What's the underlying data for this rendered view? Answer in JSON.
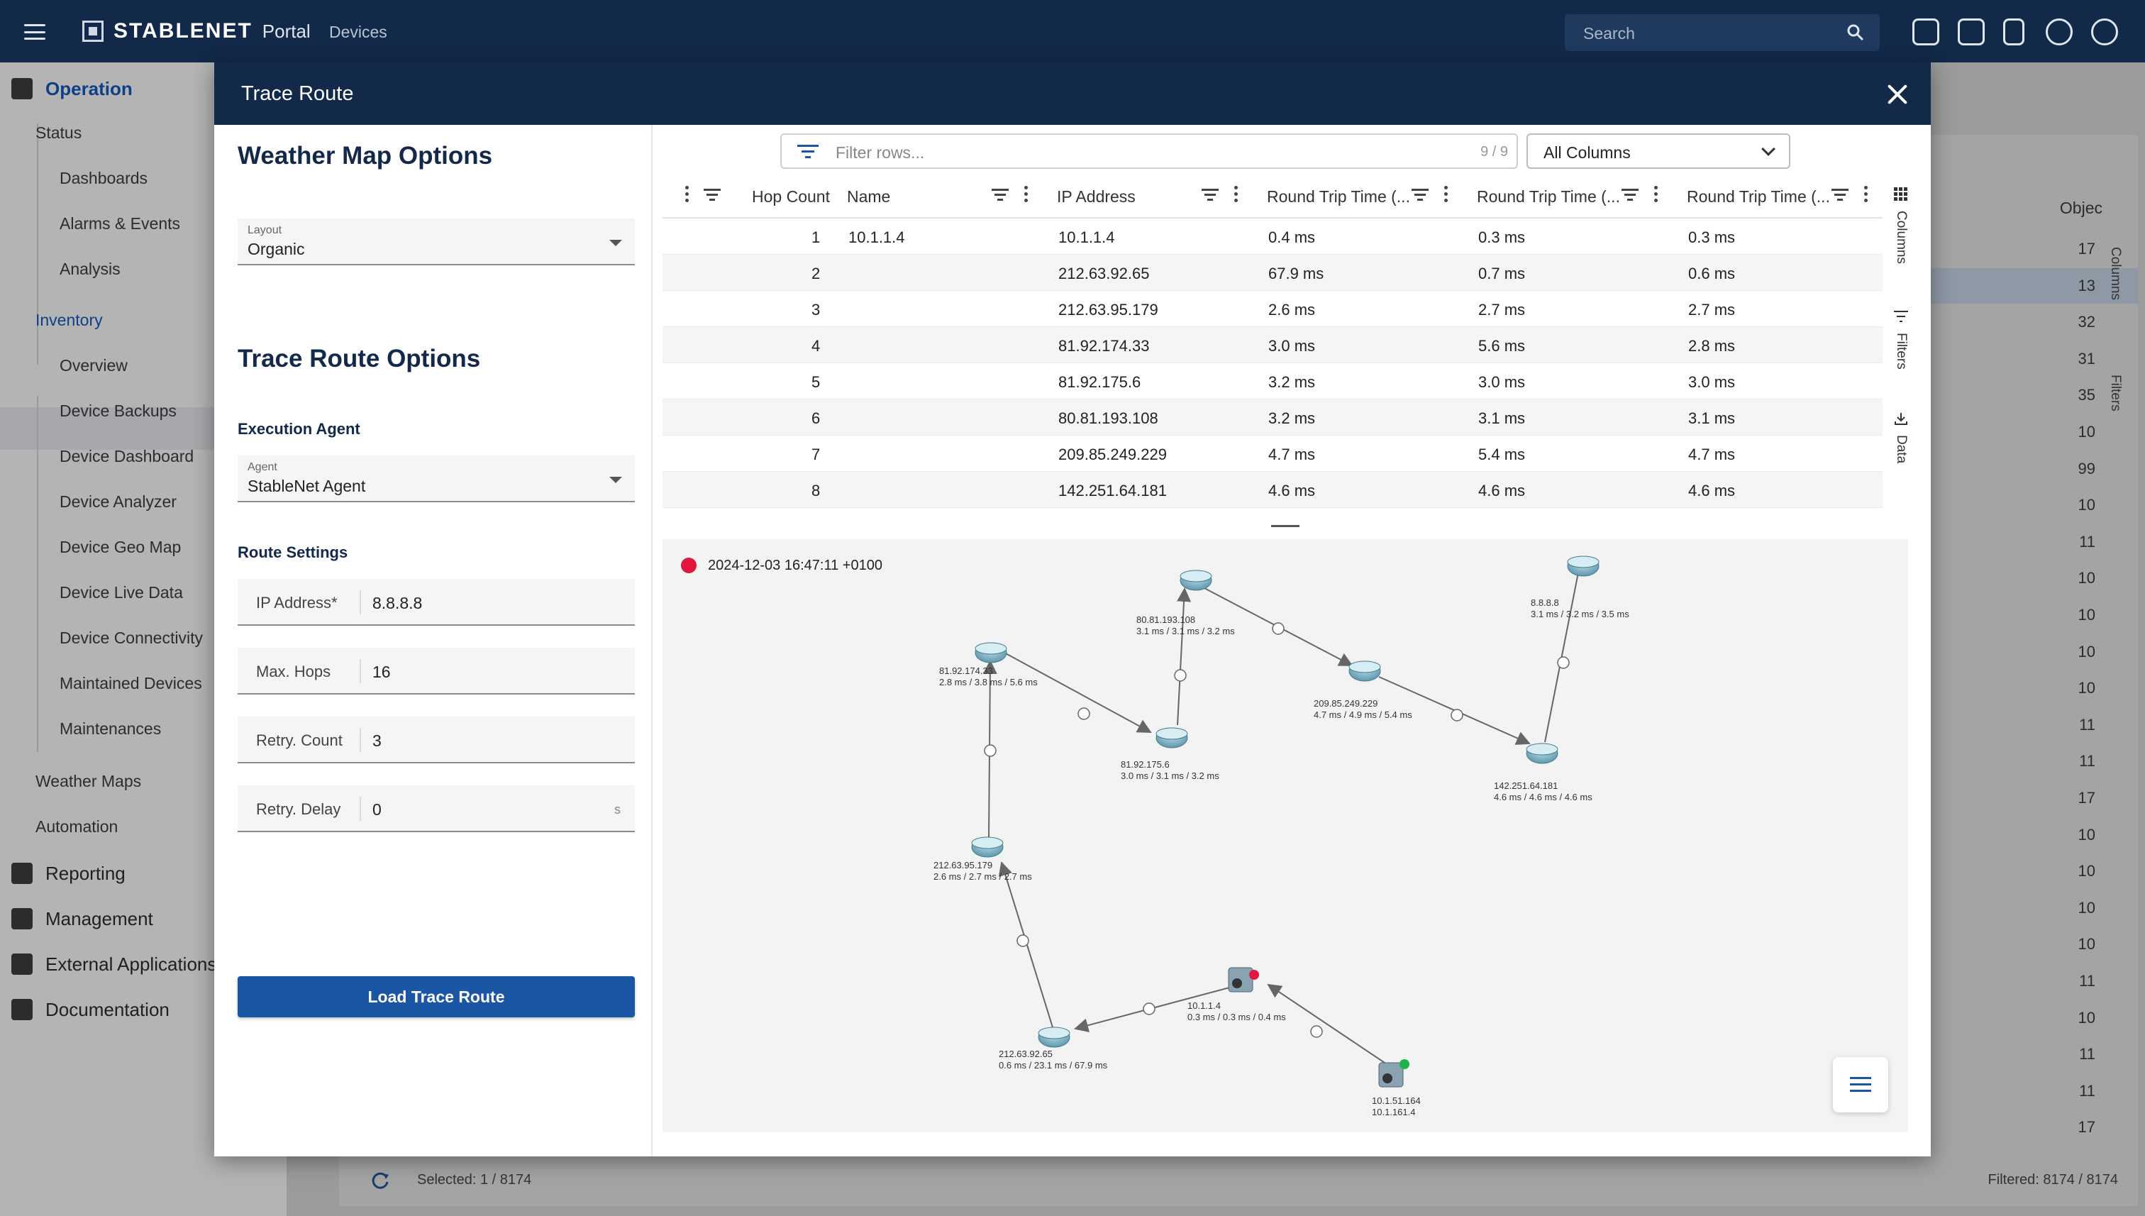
{
  "app": {
    "brand": "STABLENET",
    "portal": "Portal",
    "breadcrumb": "Devices",
    "search_placeholder": "Search"
  },
  "sidebar": {
    "operation": "Operation",
    "status": "Status",
    "status_items": [
      "Dashboards",
      "Alarms & Events",
      "Analysis"
    ],
    "inventory": "Inventory",
    "inventory_items": [
      "Overview",
      "Device Backups",
      "Device Dashboard",
      "Device Analyzer",
      "Device Geo Map",
      "Device Live Data",
      "Device Connectivity",
      "Maintained Devices",
      "Maintenances"
    ],
    "weather_maps": "Weather Maps",
    "automation": "Automation",
    "reporting": "Reporting",
    "management": "Management",
    "external": "External Applications",
    "documentation": "Documentation"
  },
  "background_table": {
    "column_header": "Objec",
    "values": [
      "17",
      "13",
      "32",
      "31",
      "35",
      "10",
      "99",
      "10",
      "11",
      "10",
      "10",
      "10",
      "10",
      "11",
      "11",
      "17",
      "10",
      "10",
      "10",
      "10",
      "11",
      "10",
      "11",
      "11",
      "17"
    ],
    "selected": "Selected: 1 / 8174",
    "filtered": "Filtered: 8174 / 8174",
    "side_tabs": [
      "Columns",
      "Filters"
    ]
  },
  "modal": {
    "title": "Trace Route",
    "weather_heading": "Weather Map Options",
    "layout_label": "Layout",
    "layout_value": "Organic",
    "trace_heading": "Trace Route Options",
    "execution_agent": "Execution Agent",
    "agent_label": "Agent",
    "agent_value": "StableNet Agent",
    "route_settings": "Route Settings",
    "ip_label": "IP Address*",
    "ip_value": "8.8.8.8",
    "hops_label": "Max. Hops",
    "hops_value": "16",
    "retry_count_label": "Retry. Count",
    "retry_count_value": "3",
    "retry_delay_label": "Retry. Delay",
    "retry_delay_value": "0",
    "retry_delay_unit": "s",
    "load_button": "Load Trace Route"
  },
  "grid": {
    "filter_placeholder": "Filter rows...",
    "filter_count": "9 / 9",
    "columns_select": "All Columns",
    "headers": [
      "Hop Count",
      "Name",
      "IP Address",
      "Round Trip Time (...",
      "Round Trip Time (...",
      "Round Trip Time (..."
    ],
    "rows": [
      {
        "hop": "1",
        "name": "10.1.1.4",
        "ip": "10.1.1.4",
        "rtt1": "0.4 ms",
        "rtt2": "0.3 ms",
        "rtt3": "0.3 ms"
      },
      {
        "hop": "2",
        "name": "",
        "ip": "212.63.92.65",
        "rtt1": "67.9 ms",
        "rtt2": "0.7 ms",
        "rtt3": "0.6 ms"
      },
      {
        "hop": "3",
        "name": "",
        "ip": "212.63.95.179",
        "rtt1": "2.6 ms",
        "rtt2": "2.7 ms",
        "rtt3": "2.7 ms"
      },
      {
        "hop": "4",
        "name": "",
        "ip": "81.92.174.33",
        "rtt1": "3.0 ms",
        "rtt2": "5.6 ms",
        "rtt3": "2.8 ms"
      },
      {
        "hop": "5",
        "name": "",
        "ip": "81.92.175.6",
        "rtt1": "3.2 ms",
        "rtt2": "3.0 ms",
        "rtt3": "3.0 ms"
      },
      {
        "hop": "6",
        "name": "",
        "ip": "80.81.193.108",
        "rtt1": "3.2 ms",
        "rtt2": "3.1 ms",
        "rtt3": "3.1 ms"
      },
      {
        "hop": "7",
        "name": "",
        "ip": "209.85.249.229",
        "rtt1": "4.7 ms",
        "rtt2": "5.4 ms",
        "rtt3": "4.7 ms"
      },
      {
        "hop": "8",
        "name": "",
        "ip": "142.251.64.181",
        "rtt1": "4.6 ms",
        "rtt2": "4.6 ms",
        "rtt3": "4.6 ms"
      }
    ],
    "side_tabs": [
      "Columns",
      "Filters",
      "Data"
    ]
  },
  "map": {
    "timestamp": "2024-12-03 16:47:11 +0100",
    "nodes": [
      {
        "line1": "10.1.51.164",
        "line2": "10.1.161.4"
      },
      {
        "line1": "10.1.1.4",
        "line2": "0.3 ms / 0.3 ms / 0.4 ms"
      },
      {
        "line1": "212.63.92.65",
        "line2": "0.6 ms / 23.1 ms / 67.9 ms"
      },
      {
        "line1": "212.63.95.179",
        "line2": "2.6 ms / 2.7 ms / 2.7 ms"
      },
      {
        "line1": "81.92.174.33",
        "line2": "2.8 ms / 3.8 ms / 5.6 ms"
      },
      {
        "line1": "81.92.175.6",
        "line2": "3.0 ms / 3.1 ms / 3.2 ms"
      },
      {
        "line1": "80.81.193.108",
        "line2": "3.1 ms / 3.1 ms / 3.2 ms"
      },
      {
        "line1": "209.85.249.229",
        "line2": "4.7 ms / 4.9 ms / 5.4 ms"
      },
      {
        "line1": "142.251.64.181",
        "line2": "4.6 ms / 4.6 ms / 4.6 ms"
      },
      {
        "line1": "8.8.8.8",
        "line2": "3.1 ms / 3.2 ms / 3.5 ms"
      }
    ]
  }
}
